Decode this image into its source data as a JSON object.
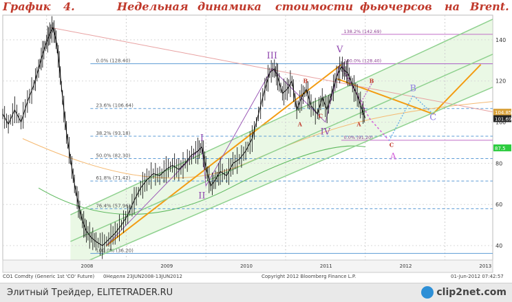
{
  "header": {
    "title_words": [
      "График",
      "4.",
      "Недельная",
      "динамика",
      "стоимости",
      "фьючерсов",
      "на",
      "Brent."
    ]
  },
  "chart_data": {
    "type": "line",
    "instrument": "CO1 Comdty (Generic 1st 'CO' Future)",
    "period_label": "0Неделя 23JUN2008-13JUN2012",
    "copyright": "Copyright 2012 Bloomberg Finance L.P.",
    "timestamp": "01-Jun-2012 07:42:57",
    "x_ticks": [
      "2008",
      "2009",
      "2010",
      "2011",
      "2012",
      "2013"
    ],
    "y_ticks": [
      40,
      60,
      80,
      100,
      120,
      140
    ],
    "ylim": [
      33,
      152
    ],
    "xlim": [
      2007.45,
      2013.6
    ],
    "price_labels": [
      {
        "value": 104.85,
        "text": "104.85",
        "color": "#d9a23c"
      },
      {
        "value": 101.69,
        "text": "101.69",
        "color": "#222222"
      },
      {
        "value": 87.5,
        "text": "87.5",
        "color": "#2ecc40"
      }
    ],
    "fibonacci_main": {
      "line_color": "#5b9bd5",
      "levels": [
        {
          "value": 128.4,
          "label": "0.0% (128.40)"
        },
        {
          "value": 106.64,
          "label": "23.6% (106.64)"
        },
        {
          "value": 93.18,
          "label": "38.2% (93.18)"
        },
        {
          "value": 82.3,
          "label": "50.0% (82.30)"
        },
        {
          "value": 71.42,
          "label": "61.8% (71.42)"
        },
        {
          "value": 57.96,
          "label": "76.4% (57.96)"
        },
        {
          "value": 36.2,
          "label": "100.0% (36.20)"
        }
      ]
    },
    "fibonacci_ext": {
      "line_color": "#c06cc8",
      "levels": [
        {
          "value": 142.69,
          "label": "138.2% (142.69)"
        },
        {
          "value": 128.4,
          "label": "100.0% (128.40)"
        },
        {
          "value": 91.2,
          "label": "0.0% (91.20)"
        }
      ]
    },
    "wave_labels": [
      {
        "text": "I",
        "x": 2009.95,
        "y": 91,
        "color": "#8e44ad"
      },
      {
        "text": "II",
        "x": 2009.95,
        "y": 63,
        "color": "#8e44ad"
      },
      {
        "text": "III",
        "x": 2010.83,
        "y": 131,
        "color": "#8e44ad"
      },
      {
        "text": "IV",
        "x": 2011.5,
        "y": 94,
        "color": "#8e44ad"
      },
      {
        "text": "V",
        "x": 2011.68,
        "y": 134,
        "color": "#8e44ad"
      },
      {
        "text": "A",
        "x": 2012.35,
        "y": 82,
        "color": "#d35fd9"
      },
      {
        "text": "B",
        "x": 2012.6,
        "y": 115,
        "color": "#8e7de0"
      },
      {
        "text": "C",
        "x": 2012.85,
        "y": 101,
        "color": "#8e7de0"
      },
      {
        "text": "B",
        "x": 2011.25,
        "y": 119,
        "color": "#c0392b"
      },
      {
        "text": "A",
        "x": 2011.18,
        "y": 98,
        "color": "#c0392b"
      },
      {
        "text": "C",
        "x": 2011.44,
        "y": 102,
        "color": "#c0392b"
      },
      {
        "text": "A",
        "x": 2011.92,
        "y": 98,
        "color": "#c0392b"
      },
      {
        "text": "B",
        "x": 2012.08,
        "y": 119,
        "color": "#c0392b"
      },
      {
        "text": "C",
        "x": 2012.33,
        "y": 88,
        "color": "#c0392b"
      }
    ],
    "price_series": [
      [
        2007.45,
        104
      ],
      [
        2007.52,
        99
      ],
      [
        2007.6,
        106
      ],
      [
        2007.68,
        100
      ],
      [
        2007.76,
        110
      ],
      [
        2007.84,
        118
      ],
      [
        2007.9,
        126
      ],
      [
        2007.95,
        133
      ],
      [
        2008.0,
        139
      ],
      [
        2008.04,
        143
      ],
      [
        2008.08,
        146
      ],
      [
        2008.12,
        140
      ],
      [
        2008.16,
        128
      ],
      [
        2008.2,
        112
      ],
      [
        2008.25,
        95
      ],
      [
        2008.3,
        82
      ],
      [
        2008.35,
        70
      ],
      [
        2008.4,
        60
      ],
      [
        2008.45,
        52
      ],
      [
        2008.5,
        47
      ],
      [
        2008.56,
        44
      ],
      [
        2008.62,
        42
      ],
      [
        2008.7,
        40
      ],
      [
        2008.78,
        43
      ],
      [
        2008.86,
        46
      ],
      [
        2008.94,
        50
      ],
      [
        2009.02,
        55
      ],
      [
        2009.1,
        62
      ],
      [
        2009.18,
        68
      ],
      [
        2009.26,
        72
      ],
      [
        2009.34,
        75
      ],
      [
        2009.42,
        74
      ],
      [
        2009.5,
        77
      ],
      [
        2009.58,
        79
      ],
      [
        2009.66,
        77
      ],
      [
        2009.74,
        80
      ],
      [
        2009.82,
        84
      ],
      [
        2009.9,
        86
      ],
      [
        2009.95,
        88
      ],
      [
        2010.0,
        78
      ],
      [
        2010.06,
        69
      ],
      [
        2010.12,
        72
      ],
      [
        2010.18,
        76
      ],
      [
        2010.26,
        74
      ],
      [
        2010.34,
        80
      ],
      [
        2010.42,
        82
      ],
      [
        2010.5,
        86
      ],
      [
        2010.58,
        92
      ],
      [
        2010.66,
        104
      ],
      [
        2010.74,
        116
      ],
      [
        2010.8,
        124
      ],
      [
        2010.86,
        126
      ],
      [
        2010.9,
        122
      ],
      [
        2010.96,
        114
      ],
      [
        2011.02,
        116
      ],
      [
        2011.08,
        120
      ],
      [
        2011.14,
        106
      ],
      [
        2011.2,
        112
      ],
      [
        2011.26,
        116
      ],
      [
        2011.32,
        108
      ],
      [
        2011.4,
        104
      ],
      [
        2011.46,
        112
      ],
      [
        2011.52,
        106
      ],
      [
        2011.58,
        114
      ],
      [
        2011.64,
        122
      ],
      [
        2011.7,
        127
      ],
      [
        2011.74,
        125
      ],
      [
        2011.78,
        124
      ],
      [
        2011.84,
        118
      ],
      [
        2011.9,
        113
      ],
      [
        2011.96,
        106
      ],
      [
        2012.0,
        102
      ]
    ],
    "annotation_lines": [
      {
        "name": "orange-trend",
        "color": "#f39c12",
        "width": 2,
        "points": [
          [
            2008.75,
            40
          ],
          [
            2011.7,
            128
          ]
        ]
      },
      {
        "name": "orange-path",
        "color": "#f39c12",
        "width": 2,
        "points": [
          [
            2011.65,
            121
          ],
          [
            2012.85,
            104
          ],
          [
            2013.45,
            128
          ]
        ]
      },
      {
        "name": "pink-resistance",
        "color": "#e8a0a0",
        "width": 1,
        "points": [
          [
            2008.05,
            146
          ],
          [
            2013.6,
            105
          ]
        ]
      },
      {
        "name": "green-channel-upper",
        "color": "#8fd18f",
        "width": 1.5,
        "points": [
          [
            2008.3,
            55
          ],
          [
            2013.6,
            150
          ]
        ]
      },
      {
        "name": "green-channel-mid",
        "color": "#8fd18f",
        "width": 1.5,
        "points": [
          [
            2008.3,
            42
          ],
          [
            2013.6,
            133
          ]
        ]
      },
      {
        "name": "green-channel-lower",
        "color": "#8fd18f",
        "width": 1.5,
        "points": [
          [
            2008.3,
            29
          ],
          [
            2013.6,
            117
          ]
        ]
      },
      {
        "name": "purple-wave-main",
        "color": "#9b59b6",
        "width": 1,
        "points": [
          [
            2008.75,
            40
          ],
          [
            2009.95,
            88
          ],
          [
            2010.0,
            69
          ],
          [
            2010.83,
            126
          ],
          [
            2011.5,
            100
          ],
          [
            2011.68,
            128
          ]
        ]
      },
      {
        "name": "dotted-forecast-a",
        "color": "#d35fd9",
        "width": 1.5,
        "dash": "3,3",
        "points": [
          [
            2011.72,
            127
          ],
          [
            2012.05,
            102
          ],
          [
            2012.3,
            91
          ]
        ]
      },
      {
        "name": "dotted-forecast-b",
        "color": "#6fb3e8",
        "width": 1.5,
        "dash": "2,2",
        "points": [
          [
            2012.3,
            91
          ],
          [
            2012.6,
            113
          ],
          [
            2012.85,
            104
          ]
        ]
      },
      {
        "name": "dotted-forecast-c",
        "color": "#c06cc8",
        "width": 1.5,
        "dash": "2,2",
        "points": [
          [
            2011.72,
            125
          ],
          [
            2011.95,
            110
          ],
          [
            2012.1,
            120
          ]
        ]
      }
    ]
  },
  "footer": {
    "source_left": "CO1 Comdty (Generic 1st 'CO' Future)",
    "source_mid": "0Неделя 23JUN2008-13JUN2012",
    "copyright": "Copyright 2012 Bloomberg Finance L.P.",
    "timestamp": "01-Jun-2012 07:42:57",
    "watermark_left": "Элитный Трейдер, ELITETRADER.RU",
    "watermark_right": "clip2net.com"
  }
}
